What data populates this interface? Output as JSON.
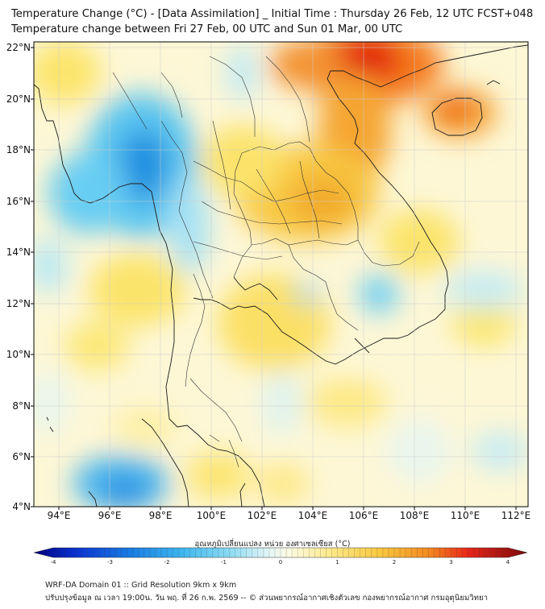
{
  "title": {
    "line1": "Temperature Change (°C) - [Data Assimilation] _ Initial Time : Thursday 26 Feb, 12 UTC FCST+048",
    "line2": "Temperature change between Fri 27 Feb, 00 UTC and Sun 01 Mar, 00 UTC"
  },
  "axes": {
    "lat_labels": [
      "22°N",
      "20°N",
      "18°N",
      "16°N",
      "14°N",
      "12°N",
      "10°N",
      "8°N",
      "6°N",
      "4°N"
    ],
    "lon_labels": [
      "94°E",
      "96°E",
      "98°E",
      "100°E",
      "102°E",
      "104°E",
      "106°E",
      "108°E",
      "110°E",
      "112°E"
    ],
    "lat_values": [
      22,
      20,
      18,
      16,
      14,
      12,
      10,
      8,
      6,
      4
    ],
    "lon_values": [
      94,
      96,
      98,
      100,
      102,
      104,
      106,
      108,
      110,
      112
    ],
    "lat_range": [
      4,
      22.2
    ],
    "lon_range": [
      93,
      112.5
    ]
  },
  "colorbar": {
    "label": "อุณหภูมิเปลี่ยนแปลง หน่วย องศาเซลเซียส (°C)",
    "ticks": [
      "-4",
      "-3",
      "-2",
      "-1",
      "0",
      "1",
      "2",
      "3",
      "4"
    ],
    "tick_values": [
      -4,
      -3,
      -2,
      -1,
      0,
      1,
      2,
      3,
      4
    ],
    "min": -4,
    "max": 4
  },
  "footer": {
    "line1": "WRF-DA Domain 01 :: Grid Resolution 9km x 9km",
    "line2": "ปรับปรุงข้อมูล ณ เวลา 19:00น. วัน พฤ. ที่ 26 ก.พ. 2569 -- © ส่วนพยากรณ์อากาศเชิงตัวเลข กองพยากรณ์อากาศ กรมอุตุนิยมวิทยา"
  },
  "field_features": [
    {
      "name": "north-vietnam-warm",
      "lon": 106.3,
      "lat": 21.6,
      "value": 3.3
    },
    {
      "name": "hainan-warm",
      "lon": 110.2,
      "lat": 19.8,
      "value": 2.6
    },
    {
      "name": "northeast-thailand-warm",
      "lon": 104.3,
      "lat": 16.2,
      "value": 1.7
    },
    {
      "name": "central-laos-warm",
      "lon": 105.5,
      "lat": 18.5,
      "value": 2.2
    },
    {
      "name": "myanmar-cold",
      "lon": 97.0,
      "lat": 17.6,
      "value": -2.2
    },
    {
      "name": "andaman-cold",
      "lon": 95.0,
      "lat": 16.3,
      "value": -1.3
    },
    {
      "name": "south-cold",
      "lon": 96.5,
      "lat": 4.6,
      "value": -2.0
    },
    {
      "name": "cambodia-coast-cool",
      "lon": 106.0,
      "lat": 12.2,
      "value": -1.0
    },
    {
      "name": "gulf-warm",
      "lon": 101.0,
      "lat": 8.0,
      "value": 0.9
    }
  ]
}
